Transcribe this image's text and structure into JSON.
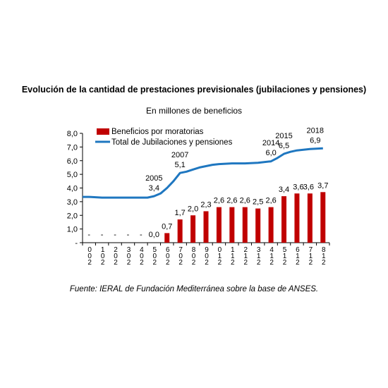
{
  "chart_data": {
    "type": "bar",
    "title": "Evolución de la cantidad de prestaciones previsionales (jubilaciones y pensiones)",
    "subtitle": "En millones de beneficios",
    "source": "Fuente: IERAL de Fundación Mediterránea sobre la base de ANSES.",
    "categories": [
      "0 0 2",
      "1 0 2",
      "2 0 2",
      "3 0 2",
      "4 0 2",
      "5 0 2",
      "6 0 2",
      "7 0 2",
      "8 0 2",
      "9 0 2",
      "0 1 2",
      "1 1 2",
      "2 1 2",
      "3 1 2",
      "4 1 2",
      "5 1 2",
      "6 1 2",
      "7 1 2",
      "8 1 2"
    ],
    "category_years": [
      "2000",
      "2001",
      "2002",
      "2003",
      "2004",
      "2005",
      "2006",
      "2007",
      "2008",
      "2009",
      "2010",
      "2011",
      "2012",
      "2013",
      "2014",
      "2015",
      "2016",
      "2017",
      "2018"
    ],
    "y_ticks": [
      "-",
      "1,0",
      "2,0",
      "3,0",
      "4,0",
      "5,0",
      "6,0",
      "7,0",
      "8,0"
    ],
    "ylim": [
      0,
      8
    ],
    "legend_position": "top-left",
    "series": [
      {
        "name": "Beneficios por moratorias",
        "kind": "bar",
        "color": "#c00000",
        "values": [
          0,
          0,
          0,
          0,
          0,
          0,
          0.7,
          1.7,
          2.0,
          2.3,
          2.6,
          2.6,
          2.6,
          2.5,
          2.6,
          3.4,
          3.6,
          3.6,
          3.7
        ],
        "labels": [
          "-",
          "-",
          "-",
          "-",
          "-",
          "0,0",
          "0,7",
          "1,7",
          "2,0",
          "2,3",
          "2,6",
          "2,6",
          "2,6",
          "2,5",
          "2,6",
          "3,4",
          "3,6",
          "3,6",
          "3,7"
        ]
      },
      {
        "name": "Total de Jubilaciones y pensiones",
        "kind": "line",
        "color": "#1f77c0",
        "x": [
          -0.5,
          0,
          1,
          2,
          3,
          4,
          4.5,
          5,
          5.5,
          6,
          6.5,
          7,
          7.5,
          8,
          8.5,
          9,
          9.5,
          10,
          11,
          12,
          13,
          14,
          14.5,
          15,
          15.5,
          16,
          17,
          18
        ],
        "values": [
          3.35,
          3.35,
          3.3,
          3.3,
          3.3,
          3.3,
          3.3,
          3.4,
          3.6,
          4.0,
          4.5,
          5.1,
          5.2,
          5.35,
          5.5,
          5.6,
          5.7,
          5.75,
          5.8,
          5.8,
          5.85,
          5.95,
          6.2,
          6.5,
          6.65,
          6.75,
          6.85,
          6.9
        ]
      }
    ],
    "annotations": [
      {
        "year": "2005",
        "value": "3,4",
        "x": 5,
        "y": 3.4
      },
      {
        "year": "2007",
        "value": "5,1",
        "x": 7,
        "y": 5.1
      },
      {
        "year": "2014",
        "value": "6,0",
        "x": 14,
        "y": 6.0
      },
      {
        "year": "2015",
        "value": "6,5",
        "x": 15,
        "y": 6.5
      },
      {
        "year": "2018",
        "value": "6,9",
        "x": 18,
        "y": 6.9
      }
    ]
  }
}
